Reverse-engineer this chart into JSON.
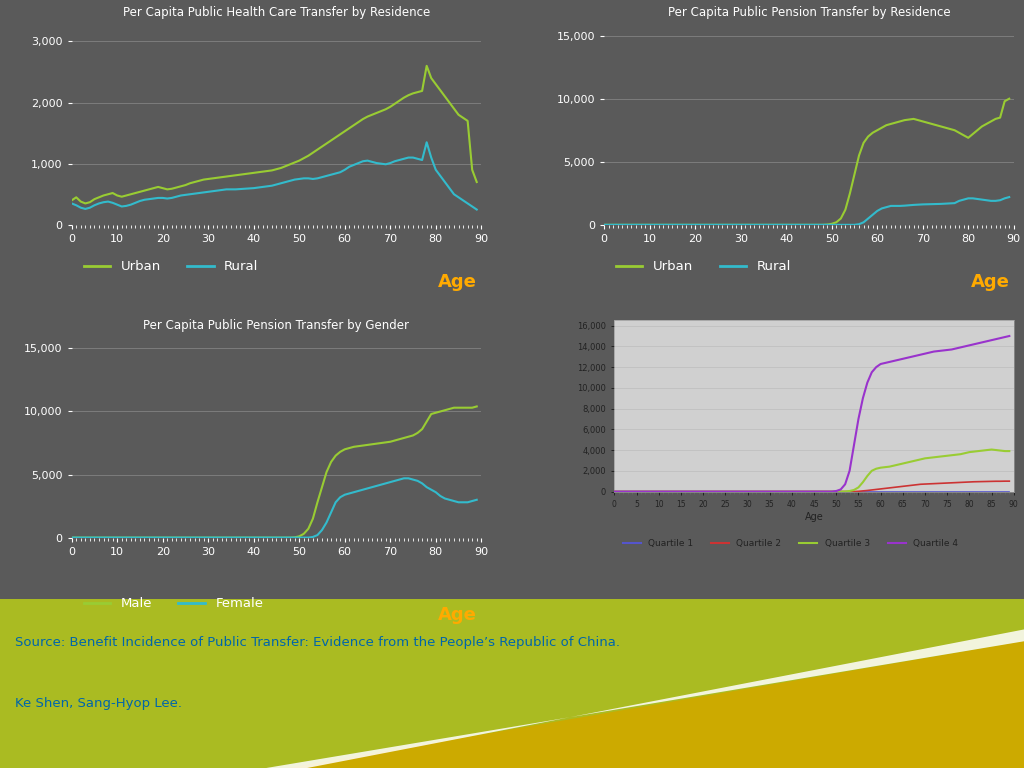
{
  "bg_color": "#5a5a5a",
  "plot_bg_color": "#5a5a5a",
  "title_color": "#ffffff",
  "tick_color": "#ffffff",
  "grid_color": "#aaaaaa",
  "urban_color": "#99cc33",
  "rural_color": "#33bbcc",
  "male_color": "#99cc33",
  "female_color": "#33bbcc",
  "q1_color": "#5555cc",
  "q2_color": "#cc3333",
  "q3_color": "#99cc33",
  "q4_color": "#9933cc",
  "age_label_color": "#ffaa00",
  "source_text_color": "#0066aa",
  "source_text_line1": "Source: Benefit Incidence of Public Transfer: Evidence from the People’s Republic of China.",
  "source_text_line2": "Ke Shen, Sang-Hyop Lee.",
  "health_urban": [
    400,
    450,
    380,
    350,
    370,
    420,
    450,
    480,
    500,
    520,
    480,
    460,
    480,
    500,
    520,
    540,
    560,
    580,
    600,
    620,
    600,
    580,
    590,
    610,
    630,
    650,
    680,
    700,
    720,
    740,
    750,
    760,
    770,
    780,
    790,
    800,
    810,
    820,
    830,
    840,
    850,
    860,
    870,
    880,
    890,
    910,
    930,
    960,
    990,
    1020,
    1050,
    1090,
    1130,
    1180,
    1230,
    1280,
    1330,
    1380,
    1430,
    1480,
    1530,
    1580,
    1630,
    1680,
    1730,
    1770,
    1800,
    1830,
    1860,
    1890,
    1930,
    1980,
    2030,
    2080,
    2120,
    2150,
    2170,
    2190,
    2600,
    2400,
    2300,
    2200,
    2100,
    2000,
    1900,
    1800,
    1750,
    1700,
    900,
    700
  ],
  "health_rural": [
    350,
    320,
    280,
    260,
    280,
    320,
    350,
    370,
    380,
    360,
    330,
    300,
    310,
    330,
    360,
    390,
    410,
    420,
    430,
    440,
    440,
    430,
    440,
    460,
    480,
    490,
    500,
    510,
    520,
    530,
    540,
    550,
    560,
    570,
    580,
    580,
    580,
    585,
    590,
    595,
    600,
    610,
    620,
    630,
    640,
    660,
    680,
    700,
    720,
    740,
    750,
    760,
    760,
    750,
    760,
    780,
    800,
    820,
    840,
    860,
    900,
    950,
    980,
    1010,
    1040,
    1050,
    1030,
    1010,
    1000,
    990,
    1010,
    1040,
    1060,
    1080,
    1100,
    1100,
    1080,
    1060,
    1350,
    1100,
    900,
    800,
    700,
    600,
    500,
    450,
    400,
    350,
    300,
    250
  ],
  "pension_res_urban": [
    0,
    0,
    0,
    0,
    0,
    0,
    0,
    0,
    0,
    0,
    0,
    0,
    0,
    0,
    0,
    0,
    0,
    0,
    0,
    0,
    0,
    0,
    0,
    0,
    0,
    0,
    0,
    0,
    0,
    0,
    0,
    0,
    0,
    0,
    0,
    0,
    0,
    0,
    0,
    0,
    0,
    0,
    0,
    0,
    0,
    0,
    0,
    0,
    0,
    20,
    80,
    200,
    500,
    1200,
    2500,
    4000,
    5500,
    6500,
    7000,
    7300,
    7500,
    7700,
    7900,
    8000,
    8100,
    8200,
    8300,
    8350,
    8400,
    8300,
    8200,
    8100,
    8000,
    7900,
    7800,
    7700,
    7600,
    7500,
    7300,
    7100,
    6900,
    7200,
    7500,
    7800,
    8000,
    8200,
    8400,
    8500,
    9800,
    10000
  ],
  "pension_res_rural": [
    0,
    0,
    0,
    0,
    0,
    0,
    0,
    0,
    0,
    0,
    0,
    0,
    0,
    0,
    0,
    0,
    0,
    0,
    0,
    0,
    0,
    0,
    0,
    0,
    0,
    0,
    0,
    0,
    0,
    0,
    0,
    0,
    0,
    0,
    0,
    0,
    0,
    0,
    0,
    0,
    0,
    0,
    0,
    0,
    0,
    0,
    0,
    0,
    0,
    0,
    0,
    0,
    0,
    0,
    0,
    0,
    50,
    200,
    500,
    800,
    1100,
    1300,
    1400,
    1500,
    1500,
    1500,
    1520,
    1550,
    1580,
    1600,
    1620,
    1630,
    1640,
    1650,
    1660,
    1680,
    1700,
    1720,
    1900,
    2000,
    2100,
    2100,
    2050,
    2000,
    1950,
    1900,
    1900,
    1950,
    2100,
    2200
  ],
  "pension_gender_male": [
    0,
    0,
    0,
    0,
    0,
    0,
    0,
    0,
    0,
    0,
    0,
    0,
    0,
    0,
    0,
    0,
    0,
    0,
    0,
    0,
    0,
    0,
    0,
    0,
    0,
    0,
    0,
    0,
    0,
    0,
    0,
    0,
    0,
    0,
    0,
    0,
    0,
    0,
    0,
    0,
    0,
    0,
    0,
    0,
    0,
    0,
    0,
    0,
    0,
    20,
    100,
    300,
    700,
    1500,
    2800,
    4000,
    5200,
    6000,
    6500,
    6800,
    7000,
    7100,
    7200,
    7250,
    7300,
    7350,
    7400,
    7450,
    7500,
    7550,
    7600,
    7700,
    7800,
    7900,
    8000,
    8100,
    8300,
    8600,
    9200,
    9800,
    9900,
    10000,
    10100,
    10200,
    10300,
    10300,
    10300,
    10300,
    10300,
    10400
  ],
  "pension_gender_female": [
    0,
    0,
    0,
    0,
    0,
    0,
    0,
    0,
    0,
    0,
    0,
    0,
    0,
    0,
    0,
    0,
    0,
    0,
    0,
    0,
    0,
    0,
    0,
    0,
    0,
    0,
    0,
    0,
    0,
    0,
    0,
    0,
    0,
    0,
    0,
    0,
    0,
    0,
    0,
    0,
    0,
    0,
    0,
    0,
    0,
    0,
    0,
    0,
    0,
    0,
    0,
    0,
    0,
    50,
    200,
    600,
    1200,
    2000,
    2800,
    3200,
    3400,
    3500,
    3600,
    3700,
    3800,
    3900,
    4000,
    4100,
    4200,
    4300,
    4400,
    4500,
    4600,
    4700,
    4700,
    4600,
    4500,
    4300,
    4000,
    3800,
    3600,
    3300,
    3100,
    3000,
    2900,
    2800,
    2800,
    2800,
    2900,
    3000
  ],
  "pension_q1": [
    0,
    0,
    0,
    0,
    0,
    0,
    0,
    0,
    0,
    0,
    0,
    0,
    0,
    0,
    0,
    0,
    0,
    0,
    0,
    0,
    0,
    0,
    0,
    0,
    0,
    0,
    0,
    0,
    0,
    0,
    0,
    0,
    0,
    0,
    0,
    0,
    0,
    0,
    0,
    0,
    0,
    0,
    0,
    0,
    0,
    0,
    0,
    0,
    0,
    0,
    0,
    0,
    0,
    0,
    0,
    0,
    0,
    0,
    0,
    0,
    0,
    0,
    0,
    0,
    0,
    0,
    0,
    0,
    0,
    0,
    0,
    0,
    0,
    0,
    0,
    0,
    0,
    0,
    0,
    0,
    0,
    0,
    0,
    0,
    0,
    0,
    0,
    0,
    0,
    0
  ],
  "pension_q2": [
    0,
    0,
    0,
    0,
    0,
    0,
    0,
    0,
    0,
    0,
    0,
    0,
    0,
    0,
    0,
    0,
    0,
    0,
    0,
    0,
    0,
    0,
    0,
    0,
    0,
    0,
    0,
    0,
    0,
    0,
    0,
    0,
    0,
    0,
    0,
    0,
    0,
    0,
    0,
    0,
    0,
    0,
    0,
    0,
    0,
    0,
    0,
    0,
    0,
    0,
    0,
    0,
    0,
    0,
    0,
    20,
    60,
    100,
    150,
    200,
    250,
    300,
    350,
    400,
    450,
    500,
    550,
    600,
    650,
    700,
    720,
    740,
    760,
    780,
    800,
    820,
    840,
    860,
    880,
    900,
    920,
    940,
    950,
    960,
    970,
    980,
    990,
    990,
    1000,
    1000
  ],
  "pension_q3": [
    0,
    0,
    0,
    0,
    0,
    0,
    0,
    0,
    0,
    0,
    0,
    0,
    0,
    0,
    0,
    0,
    0,
    0,
    0,
    0,
    0,
    0,
    0,
    0,
    0,
    0,
    0,
    0,
    0,
    0,
    0,
    0,
    0,
    0,
    0,
    0,
    0,
    0,
    0,
    0,
    0,
    0,
    0,
    0,
    0,
    0,
    0,
    0,
    0,
    0,
    0,
    0,
    0,
    50,
    150,
    400,
    900,
    1500,
    2000,
    2200,
    2300,
    2350,
    2400,
    2500,
    2600,
    2700,
    2800,
    2900,
    3000,
    3100,
    3200,
    3250,
    3300,
    3350,
    3400,
    3450,
    3500,
    3550,
    3600,
    3700,
    3800,
    3850,
    3900,
    3950,
    4000,
    4050,
    4000,
    3950,
    3900,
    3900
  ],
  "pension_q4": [
    0,
    0,
    0,
    0,
    0,
    0,
    0,
    0,
    0,
    0,
    0,
    0,
    0,
    0,
    0,
    0,
    0,
    0,
    0,
    0,
    0,
    0,
    0,
    0,
    0,
    0,
    0,
    0,
    0,
    0,
    0,
    0,
    0,
    0,
    0,
    0,
    0,
    0,
    0,
    0,
    0,
    0,
    0,
    0,
    0,
    0,
    0,
    0,
    0,
    0,
    50,
    200,
    700,
    2000,
    4500,
    7000,
    9000,
    10500,
    11500,
    12000,
    12300,
    12400,
    12500,
    12600,
    12700,
    12800,
    12900,
    13000,
    13100,
    13200,
    13300,
    13400,
    13500,
    13550,
    13600,
    13650,
    13700,
    13800,
    13900,
    14000,
    14100,
    14200,
    14300,
    14400,
    14500,
    14600,
    14700,
    14800,
    14900,
    15000
  ]
}
